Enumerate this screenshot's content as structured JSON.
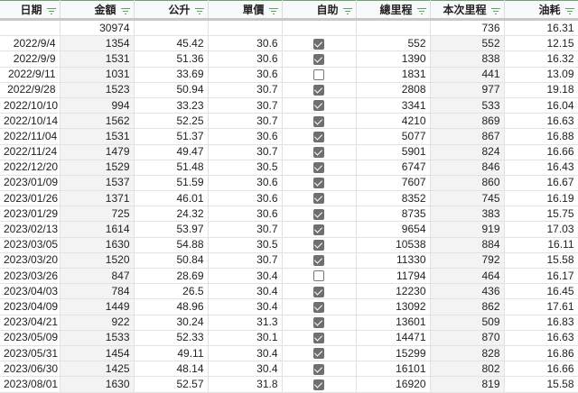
{
  "headers": [
    "日期",
    "金額",
    "公升",
    "單價",
    "自助",
    "總里程",
    "本次里程",
    "油耗"
  ],
  "colors": {
    "filter_icon": "#58a55c",
    "checkbox_checked": "#6f6f6f",
    "shaded_column": "#f3f3f3"
  },
  "summary": {
    "amount": "30974",
    "trip": "736",
    "consumption": "16.31"
  },
  "rows": [
    {
      "date": "2022/9/4",
      "amount": "1354",
      "liters": "45.42",
      "price": "30.6",
      "self": true,
      "total": "552",
      "trip": "552",
      "cons": "12.15"
    },
    {
      "date": "2022/9/9",
      "amount": "1531",
      "liters": "51.36",
      "price": "30.6",
      "self": true,
      "total": "1390",
      "trip": "838",
      "cons": "16.32"
    },
    {
      "date": "2022/9/11",
      "amount": "1031",
      "liters": "33.69",
      "price": "30.6",
      "self": false,
      "total": "1831",
      "trip": "441",
      "cons": "13.09"
    },
    {
      "date": "2022/9/28",
      "amount": "1523",
      "liters": "50.94",
      "price": "30.7",
      "self": true,
      "total": "2808",
      "trip": "977",
      "cons": "19.18"
    },
    {
      "date": "2022/10/10",
      "amount": "994",
      "liters": "33.23",
      "price": "30.7",
      "self": true,
      "total": "3341",
      "trip": "533",
      "cons": "16.04"
    },
    {
      "date": "2022/10/14",
      "amount": "1562",
      "liters": "52.25",
      "price": "30.7",
      "self": true,
      "total": "4210",
      "trip": "869",
      "cons": "16.63"
    },
    {
      "date": "2022/11/04",
      "amount": "1531",
      "liters": "51.37",
      "price": "30.6",
      "self": true,
      "total": "5077",
      "trip": "867",
      "cons": "16.88"
    },
    {
      "date": "2022/11/24",
      "amount": "1479",
      "liters": "49.47",
      "price": "30.7",
      "self": true,
      "total": "5901",
      "trip": "824",
      "cons": "16.66"
    },
    {
      "date": "2022/12/20",
      "amount": "1529",
      "liters": "51.48",
      "price": "30.5",
      "self": true,
      "total": "6747",
      "trip": "846",
      "cons": "16.43"
    },
    {
      "date": "2023/01/09",
      "amount": "1537",
      "liters": "51.59",
      "price": "30.6",
      "self": true,
      "total": "7607",
      "trip": "860",
      "cons": "16.67"
    },
    {
      "date": "2023/01/26",
      "amount": "1371",
      "liters": "46.01",
      "price": "30.6",
      "self": true,
      "total": "8352",
      "trip": "745",
      "cons": "16.19"
    },
    {
      "date": "2023/01/29",
      "amount": "725",
      "liters": "24.32",
      "price": "30.6",
      "self": true,
      "total": "8735",
      "trip": "383",
      "cons": "15.75"
    },
    {
      "date": "2023/02/13",
      "amount": "1614",
      "liters": "53.97",
      "price": "30.7",
      "self": true,
      "total": "9654",
      "trip": "919",
      "cons": "17.03"
    },
    {
      "date": "2023/03/05",
      "amount": "1630",
      "liters": "54.88",
      "price": "30.5",
      "self": true,
      "total": "10538",
      "trip": "884",
      "cons": "16.11"
    },
    {
      "date": "2023/03/20",
      "amount": "1520",
      "liters": "50.84",
      "price": "30.7",
      "self": true,
      "total": "11330",
      "trip": "792",
      "cons": "15.58"
    },
    {
      "date": "2023/03/26",
      "amount": "847",
      "liters": "28.69",
      "price": "30.4",
      "self": false,
      "total": "11794",
      "trip": "464",
      "cons": "16.17"
    },
    {
      "date": "2023/04/03",
      "amount": "784",
      "liters": "26.5",
      "price": "30.4",
      "self": true,
      "total": "12230",
      "trip": "436",
      "cons": "16.45"
    },
    {
      "date": "2023/04/09",
      "amount": "1449",
      "liters": "48.96",
      "price": "30.4",
      "self": true,
      "total": "13092",
      "trip": "862",
      "cons": "17.61"
    },
    {
      "date": "2023/04/21",
      "amount": "922",
      "liters": "30.24",
      "price": "31.3",
      "self": true,
      "total": "13601",
      "trip": "509",
      "cons": "16.83"
    },
    {
      "date": "2023/05/09",
      "amount": "1533",
      "liters": "52.33",
      "price": "30.1",
      "self": true,
      "total": "14471",
      "trip": "870",
      "cons": "16.63"
    },
    {
      "date": "2023/05/31",
      "amount": "1454",
      "liters": "49.11",
      "price": "30.4",
      "self": true,
      "total": "15299",
      "trip": "828",
      "cons": "16.86"
    },
    {
      "date": "2023/06/30",
      "amount": "1425",
      "liters": "48.14",
      "price": "30.4",
      "self": true,
      "total": "16101",
      "trip": "802",
      "cons": "16.66"
    },
    {
      "date": "2023/08/01",
      "amount": "1630",
      "liters": "52.57",
      "price": "31.8",
      "self": true,
      "total": "16920",
      "trip": "819",
      "cons": "15.58"
    }
  ]
}
